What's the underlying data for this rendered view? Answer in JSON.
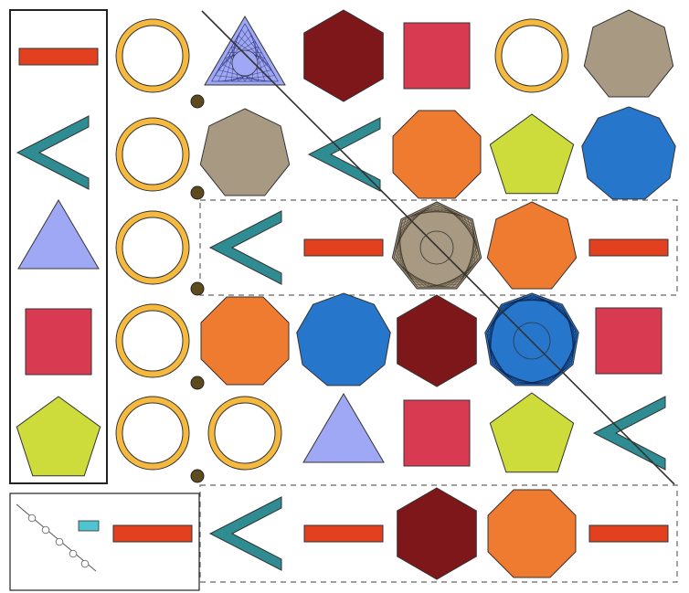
{
  "title": "",
  "colors": {
    "red_bar": "#e2401f",
    "teal": "#2f8c92",
    "lavender": "#9fa8f5",
    "crimson": "#d73a51",
    "lime": "#cddc3b",
    "ring": "#f5b93f",
    "maroon": "#7d1719",
    "tan": "#a89a82",
    "orange": "#ee7b2f",
    "blue": "#2677cc",
    "dot": "#5e4a1f",
    "outline": "#333333"
  },
  "legend_column": {
    "items": [
      "bar",
      "chevron",
      "triangle",
      "square",
      "pentagon"
    ]
  },
  "grid_rows": [
    [
      "ring",
      "triangle-pattern",
      "hexagon",
      "square",
      "ring",
      "heptagon"
    ],
    [
      "ring",
      "heptagon",
      "chevron",
      "octagon",
      "pentagon",
      "nonagon"
    ],
    [
      "ring",
      "chevron",
      "bar",
      "heptagon-pattern",
      "heptagon",
      "bar"
    ],
    [
      "ring",
      "octagon",
      "nonagon",
      "hexagon",
      "nonagon-pattern",
      "square"
    ],
    [
      "ring",
      "ring",
      "triangle",
      "square",
      "pentagon",
      "chevron"
    ],
    [
      "bar",
      "chevron",
      "bar",
      "hexagon",
      "octagon",
      "bar"
    ]
  ],
  "divider_dots": 6,
  "dashed_regions": 2,
  "diagonal_line": true
}
